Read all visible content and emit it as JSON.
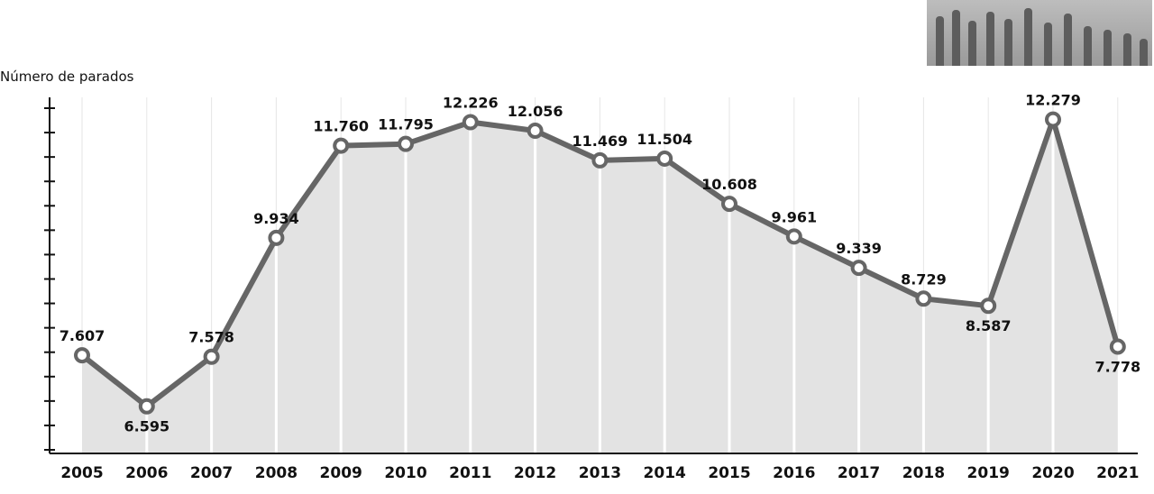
{
  "chart_data": {
    "type": "area",
    "ylabel": "Número de parados",
    "categories": [
      "2005",
      "2006",
      "2007",
      "2008",
      "2009",
      "2010",
      "2011",
      "2012",
      "2013",
      "2014",
      "2015",
      "2016",
      "2017",
      "2018",
      "2019",
      "2020",
      "2021"
    ],
    "values": [
      7607,
      6595,
      7578,
      9934,
      11760,
      11795,
      12226,
      12056,
      11469,
      11504,
      10608,
      9961,
      9339,
      8729,
      8587,
      12279,
      7778
    ],
    "value_labels": [
      "7.607",
      "6.595",
      "7.578",
      "9.934",
      "11.760",
      "11.795",
      "12.226",
      "12.056",
      "11.469",
      "11.504",
      "10.608",
      "9.961",
      "9.339",
      "8.729",
      "8.587",
      "12.279",
      "7.778"
    ],
    "label_position": [
      "above",
      "below",
      "above",
      "above",
      "above",
      "above",
      "above",
      "above",
      "above",
      "above",
      "above",
      "above",
      "above",
      "above",
      "below",
      "above",
      "below"
    ],
    "ylim": [
      5000,
      12700
    ],
    "y_tick_count": 15,
    "grid": "vertical",
    "colors": {
      "line": "#666666",
      "fill": "#e3e3e3",
      "marker_fill": "#ffffff",
      "grid": "#ffffff",
      "axis": "#111111"
    }
  },
  "decorations": {
    "photo_icon": "crowd-photo"
  }
}
